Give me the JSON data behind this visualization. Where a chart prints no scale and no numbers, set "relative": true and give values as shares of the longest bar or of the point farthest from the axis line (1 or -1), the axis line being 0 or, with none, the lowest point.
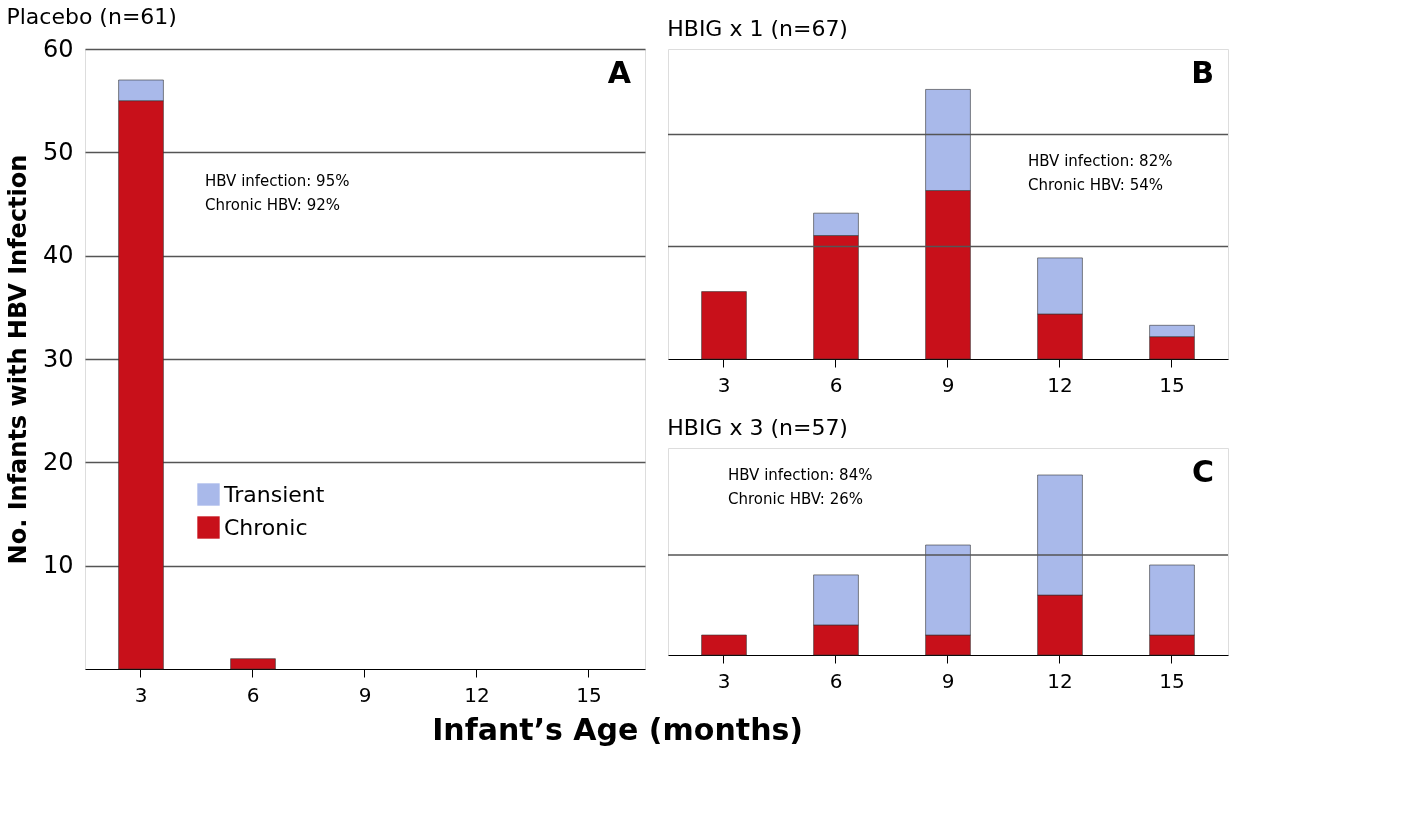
{
  "chart_data": [
    {
      "type": "bar",
      "title": "Placebo (n=61)",
      "xlabel": "Infant’s Age (months)",
      "ylabel": "No. Infants with HBV Infection",
      "categories": [
        "3",
        "6",
        "9",
        "12",
        "15"
      ],
      "stacked": true,
      "series": [
        {
          "name": "Chronic",
          "color": "#c8101a",
          "values": [
            55,
            1,
            0,
            0,
            0
          ]
        },
        {
          "name": "Transient",
          "color": "#a9b9ea",
          "values": [
            2,
            0,
            0,
            0,
            0
          ]
        }
      ],
      "ylim": [
        0,
        60
      ],
      "yticks": [
        10,
        20,
        30,
        40,
        50,
        60
      ],
      "grid": "y",
      "legend": "left",
      "annotations": [
        "A",
        "HBV infection:   95%",
        "Chronic HBV:     92%"
      ]
    },
    {
      "type": "bar",
      "title": "HBIG x 1 (n=67)",
      "categories": [
        "3",
        "6",
        "9",
        "12",
        "15"
      ],
      "stacked": true,
      "relative": true,
      "series": [
        {
          "color": "#c8101a",
          "values": [
            0.25,
            0.458,
            0.625,
            0.167,
            0.083
          ]
        },
        {
          "color": "#a9b9ea",
          "values": [
            0,
            0.083,
            0.375,
            0.208,
            0.042
          ]
        }
      ],
      "ref_lines": [
        {
          "axis": "y",
          "value": 0.417,
          "color": "#555555"
        },
        {
          "axis": "y",
          "value": 0.833,
          "color": "#555555"
        }
      ],
      "annotations": [
        "B",
        "HBV infection:   82%",
        "Chronic HBV:     54%"
      ]
    },
    {
      "type": "bar",
      "title": "HBIG x 3 (n=57)",
      "categories": [
        "3",
        "6",
        "9",
        "12",
        "15"
      ],
      "stacked": true,
      "relative": true,
      "series": [
        {
          "color": "#c8101a",
          "values": [
            0.111,
            0.167,
            0.111,
            0.333,
            0.111
          ]
        },
        {
          "color": "#a9b9ea",
          "values": [
            0,
            0.278,
            0.5,
            0.667,
            0.389
          ]
        }
      ],
      "ref_lines": [
        {
          "axis": "y",
          "value": 0.556,
          "color": "#555555"
        }
      ],
      "annotations": [
        "C",
        "HBV infection:   84%",
        "Chronic HBV:     26%"
      ]
    }
  ]
}
